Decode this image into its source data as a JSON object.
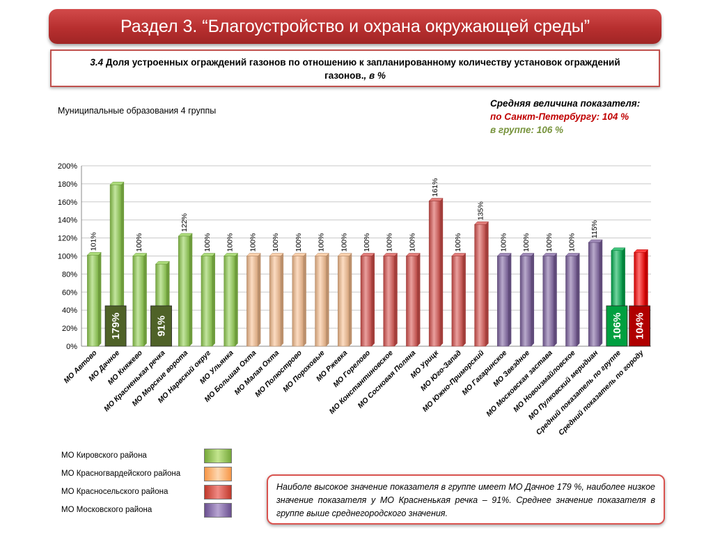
{
  "header": {
    "title": "Раздел 3. “Благоустройство и охрана окружающей среды”"
  },
  "subtitle": {
    "number": "3.4",
    "text": " Доля устроенных ограждений газонов по отношению к запланированному количеству установок ограждений газонов.",
    "unit": ", в %"
  },
  "group_label": "Муниципальные образования 4 группы",
  "averages": {
    "title": "Средняя величина показателя:",
    "city": "по Санкт-Петербургу:  104 %",
    "group": "в группе:  106 %"
  },
  "legend": [
    {
      "label": "МО Кировского района",
      "color": "#92d050"
    },
    {
      "label": "МО Красногвардейского района",
      "color": "#fac090"
    },
    {
      "label": "МО Красносельского района",
      "color": "#d9534f"
    },
    {
      "label": "МО Московского района",
      "color": "#8064a2"
    }
  ],
  "note": "Наиболе высокое значение показателя в группе имеет МО Дачное 179 %, наиболее низкое значение показателя  у МО Красненькая речка – 91%. Среднее значение показателя в группе выше среднегородского значения.",
  "chart_data": {
    "type": "bar",
    "ylim": [
      0,
      200
    ],
    "ytick_labels": [
      "0%",
      "20%",
      "40%",
      "60%",
      "80%",
      "100%",
      "120%",
      "140%",
      "160%",
      "180%",
      "200%"
    ],
    "grid": true,
    "colors": {
      "kirov": "#92d050",
      "krasnogv": "#fac090",
      "krasnosel": "#d9534f",
      "moscow": "#8064a2",
      "group_avg": "#00b050",
      "city_avg": "#ff0000"
    },
    "categories": [
      "МО Автово",
      "МО Дачное",
      "МО Княжево",
      "МО Красненькая речка",
      "МО Морские ворота",
      "МО Нарвский округ",
      "МО Ульянка",
      "МО Большая Охта",
      "МО Малая Охта",
      "МО Полюстрово",
      "МО Пороховые",
      "МО Ржевка",
      "МО Горелово",
      "МО Константиновское",
      "МО Сосновая Поляна",
      "МО Урицк",
      "МО Юго-Запад",
      "МО Южно-Приморский",
      "МО Гагаринское",
      "МО Звездное",
      "МО Московская застава",
      "МО Новоизмайловское",
      "МО Пулковский меридиан",
      "Средний показатель по группе",
      "Средний показатель по городу"
    ],
    "values": [
      101,
      179,
      100,
      91,
      122,
      100,
      100,
      100,
      100,
      100,
      100,
      100,
      100,
      100,
      100,
      161,
      100,
      135,
      100,
      100,
      100,
      100,
      115,
      106,
      104
    ],
    "value_labels": [
      "101%",
      "",
      "100%",
      "",
      "122%",
      "100%",
      "100%",
      "100%",
      "100%",
      "100%",
      "100%",
      "100%",
      "100%",
      "100%",
      "100%",
      "161%",
      "100%",
      "135%",
      "100%",
      "100%",
      "100%",
      "100%",
      "115%",
      "",
      ""
    ],
    "bar_groups": [
      "kirov",
      "kirov",
      "kirov",
      "kirov",
      "kirov",
      "kirov",
      "kirov",
      "krasnogv",
      "krasnogv",
      "krasnogv",
      "krasnogv",
      "krasnogv",
      "krasnosel",
      "krasnosel",
      "krasnosel",
      "krasnosel",
      "krasnosel",
      "krasnosel",
      "moscow",
      "moscow",
      "moscow",
      "moscow",
      "moscow",
      "group_avg",
      "city_avg"
    ],
    "highlights": [
      {
        "index": 1,
        "label": "179%",
        "color": "#4f6228"
      },
      {
        "index": 3,
        "label": "91%",
        "color": "#4f6228"
      },
      {
        "index": 23,
        "label": "106%",
        "color": "#00a040"
      },
      {
        "index": 24,
        "label": "104%",
        "color": "#b00000"
      }
    ]
  }
}
